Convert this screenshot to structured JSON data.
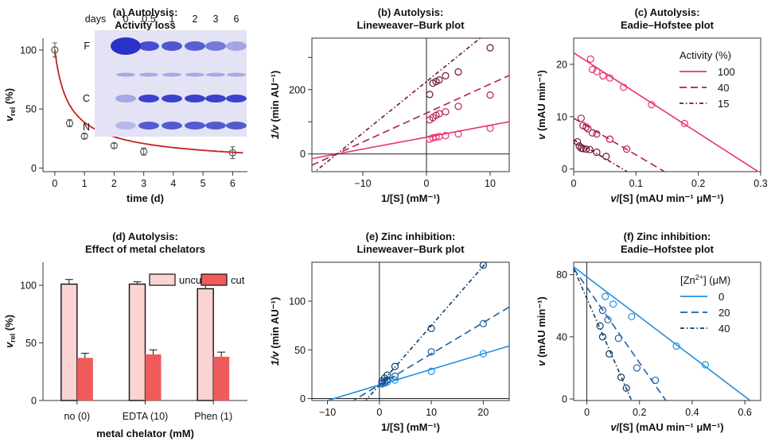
{
  "chart_data": [
    {
      "id": "a",
      "type": "scatter",
      "title": [
        "(a) Autolysis:",
        "Activity loss"
      ],
      "xlabel": "time (d)",
      "ylabel": {
        "main": "v",
        "sub": "rel",
        "tail": " (%)"
      },
      "xlim": [
        -0.4,
        6.5
      ],
      "ylim": [
        -3,
        110
      ],
      "xticks": [
        0,
        1,
        2,
        3,
        4,
        5,
        6
      ],
      "yticks": [
        0,
        50,
        100
      ],
      "points": [
        {
          "x": 0,
          "y": 100,
          "err": 6
        },
        {
          "x": 0.5,
          "y": 38,
          "err": 3
        },
        {
          "x": 1,
          "y": 27,
          "err": 2
        },
        {
          "x": 2,
          "y": 19,
          "err": 2
        },
        {
          "x": 3,
          "y": 14,
          "err": 3
        },
        {
          "x": 6,
          "y": 13,
          "err": 5
        }
      ],
      "fit_color": "#c8201f",
      "inset": {
        "lanes": [
          "days",
          "0",
          "0.5",
          "1",
          "2",
          "3",
          "6"
        ],
        "bands": [
          "F",
          "C",
          "N"
        ]
      }
    },
    {
      "id": "b",
      "type": "scatter",
      "title": [
        "(b) Autolysis:",
        "Lineweaver–Burk plot"
      ],
      "xlabel": "1/[S] (mM⁻¹)",
      "ylabel": {
        "main": "1/v",
        "tail": " (min AU⁻¹)"
      },
      "xlim": [
        -18,
        13
      ],
      "ylim": [
        -55,
        360
      ],
      "xticks": [
        -10,
        0,
        10
      ],
      "yticks": [
        0,
        100,
        200,
        300
      ],
      "ytick_labels_shown": [
        0,
        200
      ],
      "series": [
        {
          "name": "100",
          "color": "#e8336e",
          "dash": "",
          "slope": 3.7,
          "intercept": 52,
          "points": [
            [
              0.5,
              46
            ],
            [
              1,
              50
            ],
            [
              1.5,
              52
            ],
            [
              2,
              54
            ],
            [
              3,
              57
            ],
            [
              5,
              62
            ],
            [
              10,
              80
            ]
          ]
        },
        {
          "name": "40",
          "color": "#b01f4e",
          "dash": "9,5",
          "slope": 9.0,
          "intercept": 127,
          "points": [
            [
              0.5,
              106
            ],
            [
              1,
              113
            ],
            [
              1.5,
              120
            ],
            [
              2,
              125
            ],
            [
              3,
              131
            ],
            [
              5,
              148
            ],
            [
              10,
              183
            ]
          ]
        },
        {
          "name": "15",
          "color": "#6f1232",
          "dash": "5,3,1.5,3",
          "slope": 16.0,
          "intercept": 225,
          "points": [
            [
              0.5,
              185
            ],
            [
              1,
              220
            ],
            [
              1.5,
              225
            ],
            [
              2,
              230
            ],
            [
              3,
              243
            ],
            [
              5,
              255
            ],
            [
              10,
              330
            ]
          ]
        }
      ]
    },
    {
      "id": "c",
      "type": "scatter",
      "title": [
        "(c) Autolysis:",
        "Eadie–Hofstee plot"
      ],
      "xlabel": "v/[S] (mAU min⁻¹ μM⁻¹)",
      "ylabel": {
        "main": "v",
        "tail": " (mAU min⁻¹)"
      },
      "xlim": [
        0,
        0.3
      ],
      "ylim": [
        -0.5,
        25
      ],
      "xticks": [
        0,
        0.1,
        0.2,
        0.3
      ],
      "yticks": [
        0,
        10,
        20
      ],
      "legend_title": "Activity (%)",
      "series": [
        {
          "name": "100",
          "color": "#e8336e",
          "dash": "",
          "line": [
            [
              0,
              22.2
            ],
            [
              0.3,
              -0.8
            ]
          ],
          "points": [
            [
              0.027,
              21.0
            ],
            [
              0.03,
              19.0
            ],
            [
              0.037,
              18.6
            ],
            [
              0.047,
              17.8
            ],
            [
              0.058,
              17.4
            ],
            [
              0.08,
              15.6
            ],
            [
              0.125,
              12.3
            ],
            [
              0.178,
              8.7
            ]
          ]
        },
        {
          "name": "40",
          "color": "#b01f4e",
          "dash": "9,5",
          "line": [
            [
              0,
              9.7
            ],
            [
              0.15,
              -0.8
            ]
          ],
          "points": [
            [
              0.012,
              9.7
            ],
            [
              0.015,
              8.3
            ],
            [
              0.02,
              8.0
            ],
            [
              0.023,
              7.7
            ],
            [
              0.03,
              6.9
            ],
            [
              0.037,
              6.7
            ],
            [
              0.058,
              5.7
            ],
            [
              0.085,
              3.8
            ]
          ]
        },
        {
          "name": "15",
          "color": "#6f1232",
          "dash": "5,3,1.5,3",
          "line": [
            [
              0,
              5.6
            ],
            [
              0.09,
              -0.8
            ]
          ],
          "points": [
            [
              0.006,
              5.2
            ],
            [
              0.009,
              4.4
            ],
            [
              0.012,
              4.0
            ],
            [
              0.015,
              3.9
            ],
            [
              0.02,
              3.8
            ],
            [
              0.026,
              3.7
            ],
            [
              0.037,
              3.2
            ],
            [
              0.052,
              2.4
            ]
          ]
        }
      ]
    },
    {
      "id": "d",
      "type": "bar",
      "title": [
        "(d) Autolysis:",
        "Effect of metal chelators"
      ],
      "xlabel": "metal chelator (mM)",
      "ylabel": {
        "main": "v",
        "sub": "rel",
        "tail": " (%)"
      },
      "categories": [
        "no (0)",
        "EDTA (10)",
        "Phen (1)"
      ],
      "ylim": [
        0,
        120
      ],
      "yticks": [
        0,
        50,
        100
      ],
      "series": [
        {
          "name": "uncut",
          "color": "#fbd3d3",
          "values": [
            101,
            101,
            97
          ],
          "err": [
            4,
            2,
            3
          ]
        },
        {
          "name": "cut",
          "color": "#ef5a5a",
          "values": [
            37,
            40,
            38
          ],
          "err": [
            4,
            4,
            4
          ]
        }
      ]
    },
    {
      "id": "e",
      "type": "scatter",
      "title": [
        "(e) Zinc inhibition:",
        "Lineweaver–Burk plot"
      ],
      "xlabel": "1/[S] (mM⁻¹)",
      "ylabel": {
        "main": "1/v",
        "tail": " (min AU⁻¹)"
      },
      "xlim": [
        -13,
        25
      ],
      "ylim": [
        -2,
        140
      ],
      "xticks": [
        -10,
        0,
        10,
        20
      ],
      "yticks": [
        0,
        50,
        100
      ],
      "series": [
        {
          "name": "0",
          "color": "#1e90e0",
          "dash": "",
          "slope": 1.6,
          "intercept": 14,
          "points": [
            [
              0.5,
              15
            ],
            [
              1,
              16
            ],
            [
              1.5,
              17
            ],
            [
              3,
              19
            ],
            [
              10,
              28
            ],
            [
              20,
              46
            ]
          ]
        },
        {
          "name": "20",
          "color": "#1d5fa8",
          "dash": "9,5",
          "slope": 3.2,
          "intercept": 14,
          "points": [
            [
              0.5,
              16
            ],
            [
              1,
              17
            ],
            [
              1.5,
              19
            ],
            [
              3,
              23
            ],
            [
              10,
              48
            ],
            [
              20,
              77
            ]
          ]
        },
        {
          "name": "40",
          "color": "#0e3a66",
          "dash": "5,3,1.5,3",
          "slope": 6.1,
          "intercept": 14,
          "points": [
            [
              0.5,
              18
            ],
            [
              1,
              21
            ],
            [
              1.5,
              24
            ],
            [
              3,
              33
            ],
            [
              10,
              72
            ],
            [
              20,
              137
            ]
          ]
        }
      ]
    },
    {
      "id": "f",
      "type": "scatter",
      "title": [
        "(f) Zinc inhibition:",
        "Eadie–Hofstee plot"
      ],
      "xlabel": "v/[S] (mAU min⁻¹ μM⁻¹)",
      "ylabel": {
        "main": "v",
        "tail": " (mAU min⁻¹)"
      },
      "xlim": [
        -0.05,
        0.66
      ],
      "ylim": [
        -1,
        88
      ],
      "xticks": [
        0,
        0.2,
        0.4,
        0.6
      ],
      "yticks": [
        0,
        40,
        80
      ],
      "legend_title": {
        "pre": "[Zn",
        "sup": "2+",
        "post": "] (μM)"
      },
      "series": [
        {
          "name": "0",
          "color": "#1e90e0",
          "dash": "",
          "line": [
            [
              -0.05,
              85
            ],
            [
              0.62,
              -1
            ]
          ],
          "points": [
            [
              0.07,
              66
            ],
            [
              0.1,
              61
            ],
            [
              0.17,
              53
            ],
            [
              0.34,
              34
            ],
            [
              0.45,
              22
            ]
          ]
        },
        {
          "name": "20",
          "color": "#1d5fa8",
          "dash": "9,5",
          "line": [
            [
              -0.05,
              84
            ],
            [
              0.3,
              -1
            ]
          ],
          "points": [
            [
              0.06,
              57
            ],
            [
              0.08,
              51
            ],
            [
              0.12,
              39
            ],
            [
              0.19,
              20
            ],
            [
              0.26,
              12
            ]
          ]
        },
        {
          "name": "40",
          "color": "#0e3a66",
          "dash": "5,3,1.5,3",
          "line": [
            [
              -0.05,
              84
            ],
            [
              0.17,
              -1
            ]
          ],
          "points": [
            [
              0.05,
              47
            ],
            [
              0.06,
              40
            ],
            [
              0.085,
              29
            ],
            [
              0.13,
              14
            ],
            [
              0.15,
              7
            ]
          ]
        }
      ]
    }
  ]
}
